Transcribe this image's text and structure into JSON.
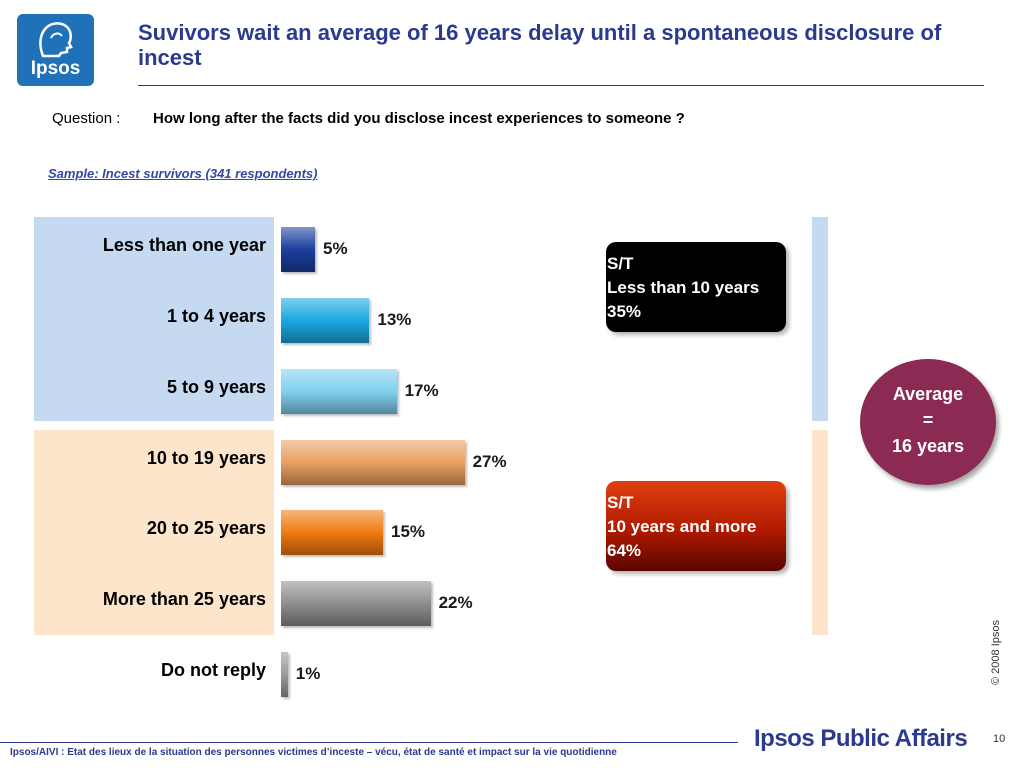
{
  "logo": {
    "text": "Ipsos"
  },
  "title": "Suvivors wait an average of 16 years delay until a spontaneous disclosure of incest",
  "question": {
    "label": "Question :",
    "text": "How long after the facts did you disclose incest experiences to someone  ?"
  },
  "sample": "Sample: Incest survivors (341 respondents)",
  "chart_data": {
    "type": "bar",
    "orientation": "horizontal",
    "categories": [
      "Less than one year",
      "1 to 4 years",
      "5 to 9 years",
      "10 to 19 years",
      "20 to 25 years",
      "More than 25 years",
      "Do not reply"
    ],
    "values": [
      5,
      13,
      17,
      27,
      15,
      22,
      1
    ],
    "value_labels": [
      "5%",
      "13%",
      "17%",
      "27%",
      "15%",
      "22%",
      "1%"
    ],
    "colors": [
      "#1c3f9e",
      "#1aa8e0",
      "#7fd0ee",
      "#e8a060",
      "#f07a10",
      "#8e8e8e",
      "#9a9a9a"
    ],
    "groups": [
      {
        "lines": [
          "S/T",
          "Less than 10 years",
          "35%"
        ],
        "color": "#000000",
        "band_color": "#c5d9f1"
      },
      {
        "lines": [
          "S/T",
          "10 years and more",
          "64%"
        ],
        "color": "#c02800",
        "band_color": "#fde5cc"
      }
    ]
  },
  "average": {
    "lines": [
      "Average",
      "=",
      "16 years"
    ],
    "color": "#8b2a52"
  },
  "copyright": "© 2008 Ipsos",
  "footer": {
    "text": "Ipsos/AIVI : Etat des lieux de la situation des personnes victimes d’inceste – vécu, état de santé et impact sur la vie quotidienne",
    "brand": "Ipsos Public Affairs",
    "page": "10"
  }
}
